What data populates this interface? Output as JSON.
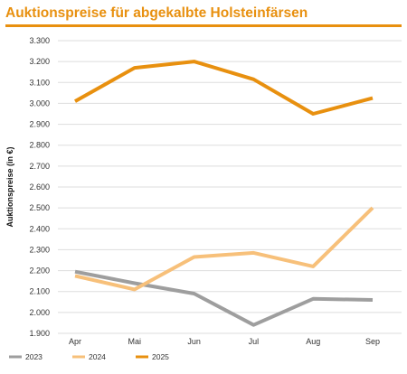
{
  "chart_data": {
    "type": "line",
    "title": "Auktionspreise für abgekalbte Holsteinfärsen",
    "ylabel": "Auktionspreise (in €)",
    "xlabel": "",
    "categories": [
      "Apr",
      "Mai",
      "Jun",
      "Jul",
      "Aug",
      "Sep"
    ],
    "ylim": [
      1900,
      3300
    ],
    "yticks": [
      3300,
      3200,
      3100,
      3000,
      2900,
      2800,
      2700,
      2600,
      2500,
      2400,
      2300,
      2200,
      2100,
      2000,
      1900
    ],
    "ytick_labels": [
      "3.300",
      "3.200",
      "3.100",
      "3.000",
      "2.900",
      "2.800",
      "2.700",
      "2.600",
      "2.500",
      "2.400",
      "2.300",
      "2.200",
      "2.100",
      "2.000",
      "1.900"
    ],
    "grid": true,
    "legend_position": "bottom-left",
    "series": [
      {
        "name": "2023",
        "color": "#9E9E9E",
        "values": [
          2195,
          2140,
          2090,
          1940,
          2065,
          2060
        ]
      },
      {
        "name": "2024",
        "color": "#F7C07A",
        "values": [
          2175,
          2110,
          2265,
          2285,
          2220,
          2500
        ]
      },
      {
        "name": "2025",
        "color": "#E8900F",
        "values": [
          3010,
          3170,
          3200,
          3115,
          2950,
          3025
        ]
      }
    ]
  }
}
